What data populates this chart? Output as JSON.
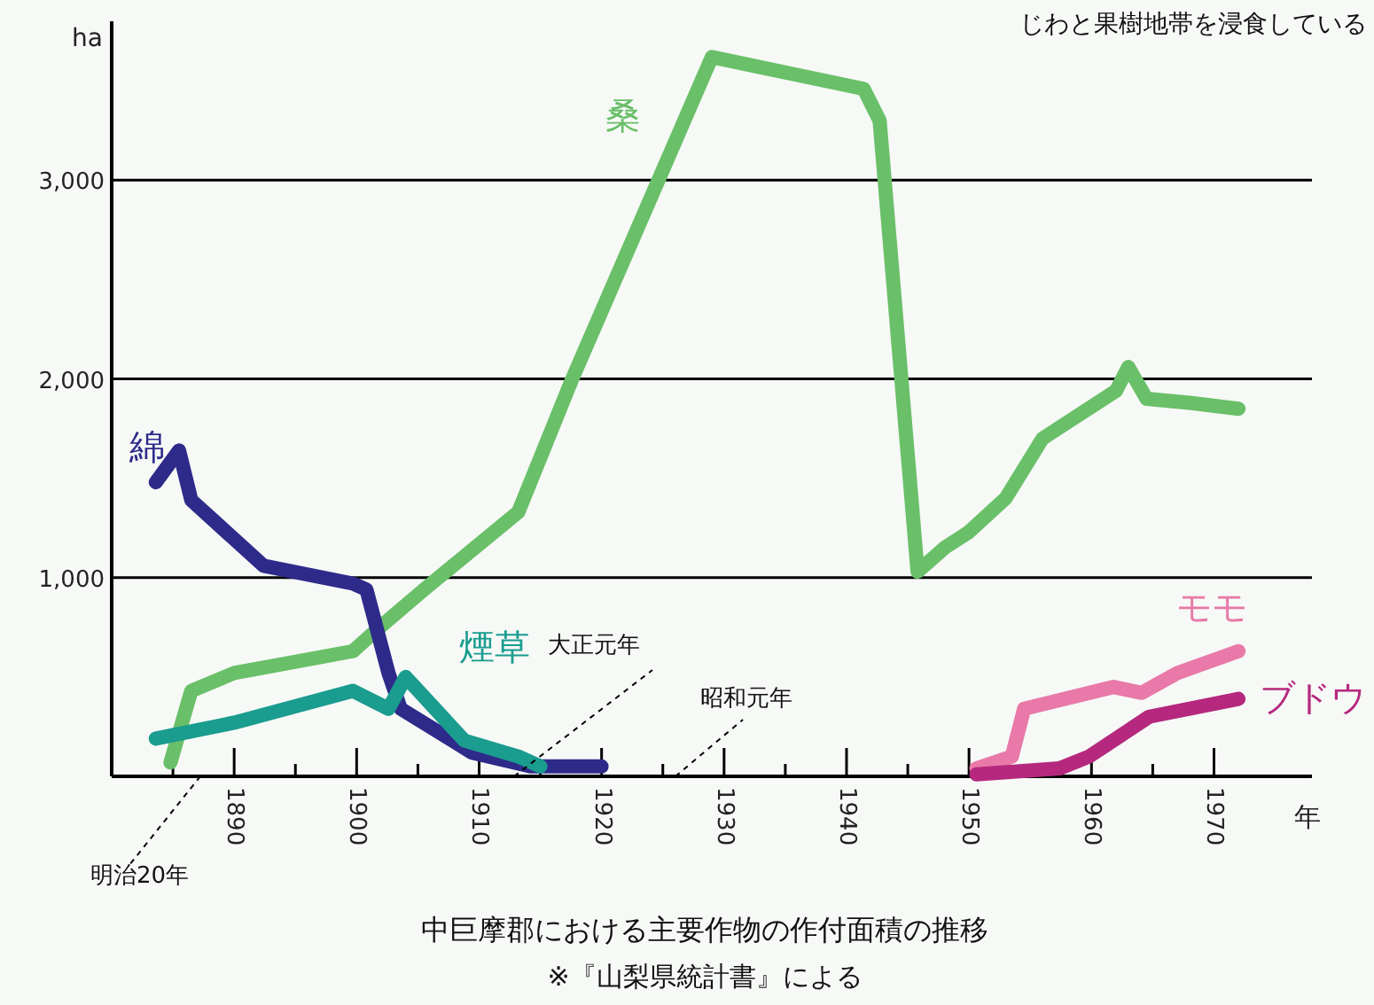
{
  "chart_data": {
    "type": "line",
    "title": "中巨摩郡における主要作物の作付面積の推移",
    "xlabel": "年",
    "ylabel": "ha",
    "annotations": [
      "じわと果樹地帯を浸食している",
      "明治20年",
      "大正元年",
      "昭和元年",
      "※『山梨県統計書』による"
    ],
    "xlim": [
      1880,
      1978
    ],
    "ylim": [
      0,
      3800
    ],
    "xticks": [
      {
        "value": 1885,
        "label": null
      },
      1890,
      {
        "value": 1895,
        "label": null
      },
      1900,
      {
        "value": 1905,
        "label": null
      },
      1910,
      {
        "value": 1915,
        "label": null
      },
      1920,
      {
        "value": 1925,
        "label": null
      },
      1930,
      {
        "value": 1935,
        "label": null
      },
      1940,
      {
        "value": 1945,
        "label": null
      },
      1950,
      {
        "value": 1955,
        "label": null
      },
      1960,
      {
        "value": 1965,
        "label": null
      },
      1970
    ],
    "yticks": [
      {
        "value": 1000,
        "label": "1,000"
      },
      {
        "value": 2000,
        "label": "2,000"
      },
      {
        "value": 3000,
        "label": "3,000"
      }
    ],
    "grid": "y",
    "marker": "none",
    "line_style": "solid",
    "series": [
      {
        "name": "桑",
        "color": "#6abf69",
        "x": [
          1884.8,
          1886.5,
          1890,
          1899.7,
          1901.5,
          1905.5,
          1913.2,
          1917.6,
          1929,
          1941.4,
          1942.7,
          1945.8,
          1948,
          1950,
          1953,
          1956,
          1958,
          1962,
          1963,
          1964.5,
          1968,
          1972
        ],
        "values": [
          70,
          430,
          520,
          630,
          730,
          940,
          1330,
          2000,
          3620,
          3460,
          3300,
          1030,
          1150,
          1230,
          1400,
          1700,
          1780,
          1940,
          2060,
          1900,
          1880,
          1850
        ]
      },
      {
        "name": "綿",
        "color": "#2e2a8a",
        "x": [
          1883.6,
          1885.5,
          1886.5,
          1892.4,
          1899.7,
          1900.8,
          1902.6,
          1903.6,
          1909.4,
          1914.2,
          1920
        ],
        "values": [
          1480,
          1640,
          1390,
          1060,
          970,
          940,
          520,
          340,
          120,
          50,
          50
        ]
      },
      {
        "name": "煙草",
        "color": "#1a9c8f",
        "x": [
          1883.6,
          1890,
          1899.7,
          1902.6,
          1904,
          1908.8,
          1913.2,
          1915
        ],
        "values": [
          190,
          270,
          430,
          340,
          500,
          180,
          100,
          50
        ]
      },
      {
        "name": "モモ",
        "color": "#e879a8",
        "x": [
          1950.6,
          1953.5,
          1954.5,
          1961.8,
          1964.1,
          1967,
          1972
        ],
        "values": [
          40,
          100,
          340,
          450,
          420,
          520,
          630
        ]
      },
      {
        "name": "ブドウ",
        "color": "#b5287e",
        "x": [
          1950.6,
          1957.4,
          1959.8,
          1964.7,
          1972
        ],
        "values": [
          10,
          40,
          100,
          300,
          390
        ]
      }
    ]
  }
}
